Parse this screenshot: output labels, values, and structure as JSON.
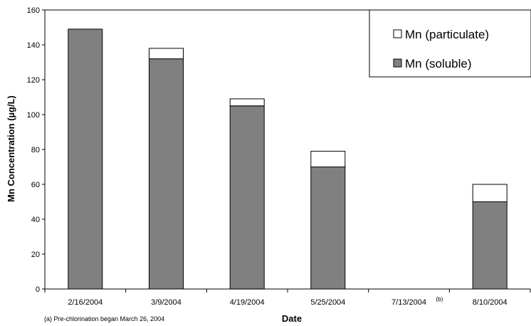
{
  "chart_data": {
    "type": "bar",
    "stacked": true,
    "categories": [
      "2/16/2004",
      "3/9/2004",
      "4/19/2004",
      "5/25/2004",
      "7/13/2004",
      "8/10/2004"
    ],
    "category_superscripts": [
      "",
      "",
      "",
      "",
      "(b)",
      ""
    ],
    "series": [
      {
        "name": "Mn (soluble)",
        "values": [
          149,
          132,
          105,
          70,
          0,
          50
        ],
        "color": "#808080"
      },
      {
        "name": "Mn (particulate)",
        "values": [
          0,
          6,
          4,
          9,
          0,
          10
        ],
        "color": "#ffffff"
      }
    ],
    "xlabel": "Date",
    "ylabel": "Mn Concentration (µg/L)",
    "ylim": [
      0,
      160
    ],
    "yticks": [
      0,
      20,
      40,
      60,
      80,
      100,
      120,
      140,
      160
    ],
    "grid": false,
    "legend_position": "top-right",
    "footnote": "(a) Pre-chlorination began March 26, 2004"
  }
}
